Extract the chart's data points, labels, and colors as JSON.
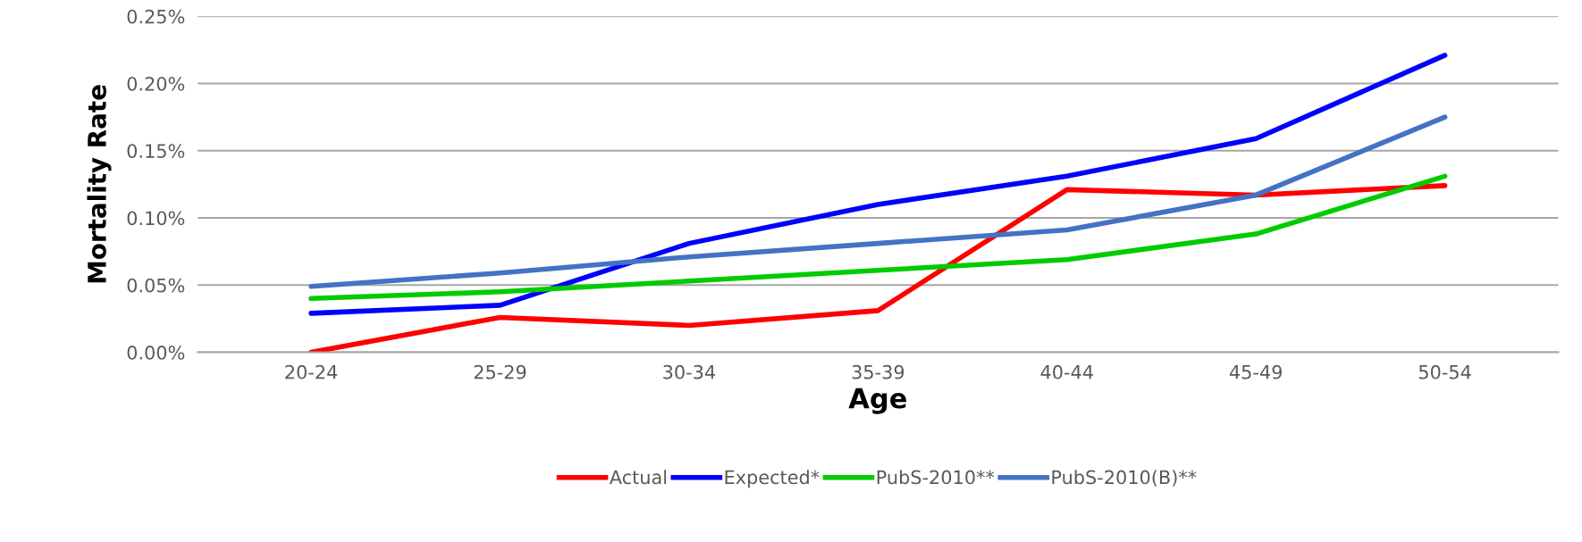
{
  "chart_data": {
    "type": "line",
    "xlabel": "Age",
    "ylabel": "Mortality Rate",
    "categories": [
      "20-24",
      "25-29",
      "30-34",
      "35-39",
      "40-44",
      "45-49",
      "50-54"
    ],
    "series": [
      {
        "name": "Actual",
        "color": "#ff0000",
        "values": [
          0.0,
          0.026,
          0.02,
          0.031,
          0.121,
          0.117,
          0.124
        ]
      },
      {
        "name": "Expected*",
        "color": "#0000ff",
        "values": [
          0.029,
          0.035,
          0.081,
          0.11,
          0.131,
          0.159,
          0.221
        ]
      },
      {
        "name": "PubS-2010**",
        "color": "#00cc00",
        "values": [
          0.04,
          0.045,
          0.053,
          0.061,
          0.069,
          0.088,
          0.131
        ]
      },
      {
        "name": "PubS-2010(B)**",
        "color": "#4472c4",
        "values": [
          0.049,
          0.059,
          0.071,
          0.081,
          0.091,
          0.117,
          0.175
        ]
      }
    ],
    "ylim": [
      0,
      0.25
    ],
    "yticks": [
      {
        "value": 0,
        "label": "0.00%"
      },
      {
        "value": 0.05,
        "label": "0.05%"
      },
      {
        "value": 0.1,
        "label": "0.10%"
      },
      {
        "value": 0.15,
        "label": "0.15%"
      },
      {
        "value": 0.2,
        "label": "0.20%"
      },
      {
        "value": 0.25,
        "label": "0.25%"
      }
    ],
    "grid": "y",
    "legend": "bottom",
    "marker": "none",
    "line_style": "solid"
  }
}
